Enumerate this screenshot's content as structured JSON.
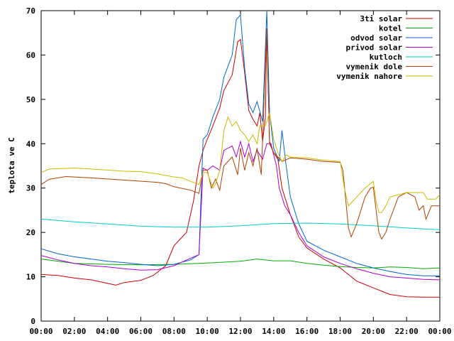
{
  "chart_data": {
    "type": "line",
    "title": "",
    "xlabel": "",
    "ylabel": "teplota ve C",
    "x_range": [
      "00:00",
      "24:00"
    ],
    "xticks": [
      "00:00",
      "02:00",
      "04:00",
      "06:00",
      "08:00",
      "10:00",
      "12:00",
      "14:00",
      "16:00",
      "18:00",
      "20:00",
      "22:00",
      "00:00"
    ],
    "ylim": [
      0,
      70
    ],
    "yticks": [
      0,
      10,
      20,
      30,
      40,
      50,
      60,
      70
    ],
    "grid": false,
    "legend_position": "top-right",
    "series": [
      {
        "name": "3ti solar",
        "color": "#cc0000",
        "points": [
          [
            "00:00",
            10.5
          ],
          [
            "01:00",
            10.3
          ],
          [
            "02:00",
            9.7
          ],
          [
            "03:00",
            9.3
          ],
          [
            "04:00",
            8.5
          ],
          [
            "04:30",
            8.1
          ],
          [
            "05:00",
            8.7
          ],
          [
            "06:00",
            9.2
          ],
          [
            "06:45",
            10.3
          ],
          [
            "07:30",
            12.5
          ],
          [
            "08:00",
            17.0
          ],
          [
            "08:45",
            20.0
          ],
          [
            "09:10",
            27.0
          ],
          [
            "09:30",
            35.0
          ],
          [
            "09:45",
            38.5
          ],
          [
            "10:00",
            41.0
          ],
          [
            "10:20",
            44.0
          ],
          [
            "10:45",
            48.0
          ],
          [
            "11:00",
            52.0
          ],
          [
            "11:30",
            55.5
          ],
          [
            "11:50",
            63.0
          ],
          [
            "12:00",
            63.5
          ],
          [
            "12:15",
            56.0
          ],
          [
            "12:30",
            47.5
          ],
          [
            "12:45",
            45.5
          ],
          [
            "13:00",
            44.0
          ],
          [
            "13:10",
            47.0
          ],
          [
            "13:20",
            40.5
          ],
          [
            "13:30",
            46.0
          ],
          [
            "13:35",
            66.0
          ],
          [
            "13:45",
            40.5
          ],
          [
            "14:00",
            38.0
          ],
          [
            "14:15",
            36.5
          ],
          [
            "14:30",
            30.0
          ],
          [
            "15:00",
            24.0
          ],
          [
            "15:30",
            19.0
          ],
          [
            "16:00",
            16.5
          ],
          [
            "17:00",
            14.0
          ],
          [
            "18:00",
            12.0
          ],
          [
            "18:30",
            10.5
          ],
          [
            "19:00",
            9.0
          ],
          [
            "20:00",
            7.5
          ],
          [
            "21:00",
            6.0
          ],
          [
            "22:00",
            5.5
          ],
          [
            "23:00",
            5.4
          ],
          [
            "24:00",
            5.4
          ]
        ]
      },
      {
        "name": "kotel",
        "color": "#00aa00",
        "points": [
          [
            "00:00",
            14.0
          ],
          [
            "02:00",
            13.0
          ],
          [
            "04:00",
            12.8
          ],
          [
            "06:00",
            12.7
          ],
          [
            "08:00",
            12.8
          ],
          [
            "10:00",
            13.1
          ],
          [
            "12:00",
            13.5
          ],
          [
            "13:00",
            14.0
          ],
          [
            "14:00",
            13.6
          ],
          [
            "15:00",
            13.6
          ],
          [
            "16:00",
            13.0
          ],
          [
            "17:00",
            12.6
          ],
          [
            "18:00",
            12.3
          ],
          [
            "19:00",
            12.1
          ],
          [
            "20:00",
            12.0
          ],
          [
            "21:00",
            12.2
          ],
          [
            "22:00",
            12.1
          ],
          [
            "23:00",
            11.8
          ],
          [
            "24:00",
            12.0
          ]
        ]
      },
      {
        "name": "odvod solar",
        "color": "#0066cc",
        "points": [
          [
            "00:00",
            16.3
          ],
          [
            "01:00",
            15.2
          ],
          [
            "02:00",
            14.5
          ],
          [
            "03:00",
            14.0
          ],
          [
            "04:00",
            13.5
          ],
          [
            "05:00",
            13.2
          ],
          [
            "06:00",
            12.8
          ],
          [
            "07:00",
            12.5
          ],
          [
            "08:00",
            12.8
          ],
          [
            "09:00",
            13.8
          ],
          [
            "09:30",
            15.0
          ],
          [
            "09:45",
            41.0
          ],
          [
            "10:00",
            42.0
          ],
          [
            "10:20",
            46.0
          ],
          [
            "10:45",
            50.0
          ],
          [
            "11:00",
            55.0
          ],
          [
            "11:30",
            60.0
          ],
          [
            "11:45",
            68.0
          ],
          [
            "12:00",
            69.0
          ],
          [
            "12:15",
            57.0
          ],
          [
            "12:30",
            49.0
          ],
          [
            "12:45",
            47.0
          ],
          [
            "13:00",
            49.5
          ],
          [
            "13:20",
            45.0
          ],
          [
            "13:35",
            70.0
          ],
          [
            "13:45",
            47.0
          ],
          [
            "14:00",
            39.0
          ],
          [
            "14:20",
            36.0
          ],
          [
            "14:30",
            43.0
          ],
          [
            "14:45",
            35.0
          ],
          [
            "15:00",
            28.0
          ],
          [
            "15:30",
            22.0
          ],
          [
            "16:00",
            18.0
          ],
          [
            "17:00",
            16.0
          ],
          [
            "18:00",
            14.5
          ],
          [
            "19:00",
            13.0
          ],
          [
            "20:00",
            12.0
          ],
          [
            "21:00",
            11.2
          ],
          [
            "22:00",
            10.5
          ],
          [
            "23:00",
            10.2
          ],
          [
            "24:00",
            10.2
          ]
        ]
      },
      {
        "name": "privod solar",
        "color": "#aa00cc",
        "points": [
          [
            "00:00",
            14.8
          ],
          [
            "01:00",
            13.8
          ],
          [
            "02:00",
            13.0
          ],
          [
            "03:00",
            12.5
          ],
          [
            "04:00",
            12.2
          ],
          [
            "05:00",
            11.8
          ],
          [
            "06:00",
            11.5
          ],
          [
            "07:00",
            11.6
          ],
          [
            "08:00",
            12.5
          ],
          [
            "09:00",
            14.2
          ],
          [
            "09:30",
            15.0
          ],
          [
            "09:45",
            34.5
          ],
          [
            "10:00",
            34.0
          ],
          [
            "10:20",
            35.0
          ],
          [
            "10:45",
            34.0
          ],
          [
            "11:00",
            38.5
          ],
          [
            "11:30",
            39.5
          ],
          [
            "11:45",
            37.0
          ],
          [
            "12:00",
            40.5
          ],
          [
            "12:15",
            37.0
          ],
          [
            "12:30",
            40.0
          ],
          [
            "12:45",
            36.0
          ],
          [
            "13:00",
            38.5
          ],
          [
            "13:20",
            36.5
          ],
          [
            "13:35",
            40.0
          ],
          [
            "13:50",
            40.0
          ],
          [
            "14:10",
            35.0
          ],
          [
            "14:20",
            30.0
          ],
          [
            "14:40",
            26.0
          ],
          [
            "15:00",
            24.0
          ],
          [
            "15:30",
            20.0
          ],
          [
            "16:00",
            17.0
          ],
          [
            "17:00",
            14.5
          ],
          [
            "18:00",
            13.0
          ],
          [
            "19:00",
            11.8
          ],
          [
            "20:00",
            10.8
          ],
          [
            "21:00",
            10.0
          ],
          [
            "22:00",
            9.7
          ],
          [
            "23:00",
            9.4
          ],
          [
            "24:00",
            9.3
          ]
        ]
      },
      {
        "name": "kutloch",
        "color": "#00cccc",
        "points": [
          [
            "00:00",
            23.0
          ],
          [
            "02:00",
            22.4
          ],
          [
            "04:00",
            21.9
          ],
          [
            "06:00",
            21.4
          ],
          [
            "08:00",
            21.2
          ],
          [
            "10:00",
            21.2
          ],
          [
            "12:00",
            21.5
          ],
          [
            "14:00",
            22.0
          ],
          [
            "16:00",
            22.1
          ],
          [
            "18:00",
            21.9
          ],
          [
            "20:00",
            21.5
          ],
          [
            "22:00",
            21.0
          ],
          [
            "24:00",
            20.6
          ]
        ]
      },
      {
        "name": "vymenik dole",
        "color": "#b04000",
        "points": [
          [
            "00:00",
            30.8
          ],
          [
            "00:30",
            32.0
          ],
          [
            "01:30",
            32.6
          ],
          [
            "03:00",
            32.3
          ],
          [
            "05:00",
            31.8
          ],
          [
            "07:00",
            31.3
          ],
          [
            "07:30",
            31.0
          ],
          [
            "08:00",
            30.3
          ],
          [
            "09:00",
            29.5
          ],
          [
            "09:30",
            28.8
          ],
          [
            "09:45",
            34.0
          ],
          [
            "10:00",
            34.0
          ],
          [
            "10:15",
            30.0
          ],
          [
            "10:30",
            32.0
          ],
          [
            "10:45",
            29.5
          ],
          [
            "11:00",
            35.0
          ],
          [
            "11:30",
            37.0
          ],
          [
            "11:50",
            33.0
          ],
          [
            "12:00",
            39.0
          ],
          [
            "12:15",
            34.0
          ],
          [
            "12:30",
            38.0
          ],
          [
            "12:45",
            35.0
          ],
          [
            "13:00",
            39.0
          ],
          [
            "13:15",
            33.0
          ],
          [
            "13:35",
            66.0
          ],
          [
            "13:45",
            40.0
          ],
          [
            "14:00",
            38.0
          ],
          [
            "14:15",
            37.0
          ],
          [
            "14:30",
            36.0
          ],
          [
            "15:00",
            36.8
          ],
          [
            "16:00",
            36.5
          ],
          [
            "17:00",
            36.0
          ],
          [
            "18:00",
            35.8
          ],
          [
            "18:10",
            34.0
          ],
          [
            "18:30",
            21.0
          ],
          [
            "18:40",
            19.0
          ],
          [
            "19:00",
            22.0
          ],
          [
            "19:30",
            28.0
          ],
          [
            "19:50",
            30.0
          ],
          [
            "20:00",
            30.2
          ],
          [
            "20:10",
            25.0
          ],
          [
            "20:20",
            20.0
          ],
          [
            "20:30",
            18.5
          ],
          [
            "20:45",
            20.0
          ],
          [
            "21:00",
            23.0
          ],
          [
            "21:30",
            28.0
          ],
          [
            "22:00",
            29.0
          ],
          [
            "22:30",
            28.0
          ],
          [
            "22:45",
            25.0
          ],
          [
            "23:00",
            26.0
          ],
          [
            "23:10",
            23.0
          ],
          [
            "23:30",
            26.0
          ],
          [
            "24:00",
            26.0
          ]
        ]
      },
      {
        "name": "vymenik nahore",
        "color": "#ccbb00",
        "points": [
          [
            "00:00",
            33.5
          ],
          [
            "00:30",
            34.3
          ],
          [
            "02:00",
            34.5
          ],
          [
            "03:00",
            34.3
          ],
          [
            "05:00",
            33.8
          ],
          [
            "06:00",
            33.7
          ],
          [
            "07:00",
            33.2
          ],
          [
            "08:00",
            32.5
          ],
          [
            "08:30",
            32.3
          ],
          [
            "09:00",
            31.5
          ],
          [
            "09:30",
            30.8
          ],
          [
            "09:45",
            33.5
          ],
          [
            "10:00",
            33.5
          ],
          [
            "10:20",
            30.0
          ],
          [
            "10:30",
            31.0
          ],
          [
            "10:45",
            34.0
          ],
          [
            "11:00",
            43.0
          ],
          [
            "11:15",
            46.0
          ],
          [
            "11:30",
            44.0
          ],
          [
            "11:45",
            45.0
          ],
          [
            "12:00",
            43.0
          ],
          [
            "12:15",
            42.0
          ],
          [
            "12:30",
            40.5
          ],
          [
            "12:45",
            42.0
          ],
          [
            "13:00",
            40.0
          ],
          [
            "13:10",
            44.0
          ],
          [
            "13:30",
            44.0
          ],
          [
            "13:45",
            47.0
          ],
          [
            "14:00",
            41.0
          ],
          [
            "14:15",
            38.0
          ],
          [
            "14:30",
            36.0
          ],
          [
            "14:45",
            37.5
          ],
          [
            "15:00",
            37.0
          ],
          [
            "16:00",
            36.8
          ],
          [
            "17:00",
            36.3
          ],
          [
            "18:00",
            36.0
          ],
          [
            "18:15",
            30.0
          ],
          [
            "18:30",
            26.0
          ],
          [
            "19:00",
            28.0
          ],
          [
            "19:30",
            30.0
          ],
          [
            "20:00",
            31.5
          ],
          [
            "20:10",
            27.0
          ],
          [
            "20:20",
            24.5
          ],
          [
            "20:30",
            24.5
          ],
          [
            "20:45",
            26.0
          ],
          [
            "21:00",
            28.0
          ],
          [
            "21:30",
            28.5
          ],
          [
            "22:00",
            29.0
          ],
          [
            "23:00",
            29.0
          ],
          [
            "23:15",
            27.5
          ],
          [
            "23:45",
            27.5
          ],
          [
            "24:00",
            28.5
          ]
        ]
      }
    ]
  }
}
